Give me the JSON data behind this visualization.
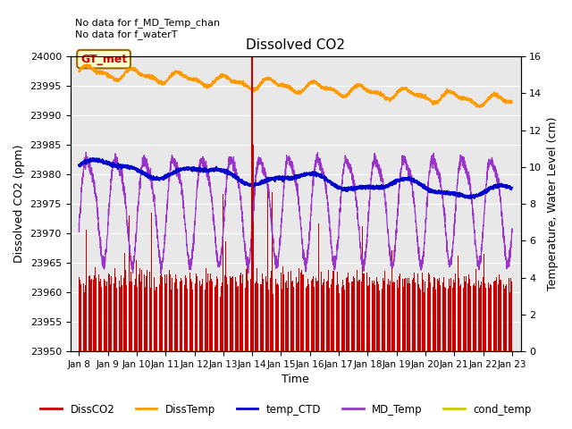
{
  "title": "Dissolved CO2",
  "xlabel": "Time",
  "ylabel_left": "Dissolved CO2 (ppm)",
  "ylabel_right": "Temperature, Water Level (cm)",
  "text_top_left": "No data for f_MD_Temp_chan\nNo data for f_waterT",
  "annotation_box": "GT_met",
  "ylim_left": [
    23950,
    24000
  ],
  "ylim_right": [
    0,
    16
  ],
  "yticks_left": [
    23950,
    23955,
    23960,
    23965,
    23970,
    23975,
    23980,
    23985,
    23990,
    23995,
    24000
  ],
  "yticks_right": [
    0,
    2,
    4,
    6,
    8,
    10,
    12,
    14,
    16
  ],
  "xtick_positions": [
    8,
    9,
    10,
    11,
    12,
    13,
    14,
    15,
    16,
    17,
    18,
    19,
    20,
    21,
    22,
    23
  ],
  "xtick_labels": [
    "Jan 8",
    "Jan 9",
    "Jan 10",
    "Jan 11",
    "Jan 12",
    "Jan 13",
    "Jan 14",
    "Jan 15",
    "Jan 16",
    "Jan 17",
    "Jan 18",
    "Jan 19",
    "Jan 20",
    "Jan 21",
    "Jan 22",
    "Jan 23"
  ],
  "xlim": [
    7.7,
    23.3
  ],
  "colors": {
    "DissCO2": "#cc0000",
    "DissTemp": "#ff9900",
    "temp_CTD": "#0000cc",
    "MD_Temp": "#9933cc",
    "cond_temp": "#cccc00",
    "background": "#e8e8e8",
    "vline": "#cc0000",
    "gt_met_box_edge": "#996600",
    "gt_met_box_fill": "#ffffcc",
    "gt_met_text": "#cc0000",
    "grid": "#ffffff"
  },
  "figsize": [
    6.4,
    4.8
  ],
  "dpi": 100
}
